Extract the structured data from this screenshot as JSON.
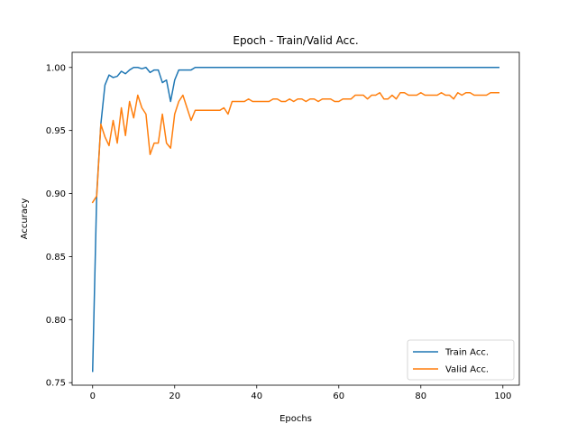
{
  "chart_data": {
    "type": "line",
    "title": "Epoch - Train/Valid Acc.",
    "xlabel": "Epochs",
    "ylabel": "Accuracy",
    "xlim": [
      -5.0,
      104.0
    ],
    "ylim": [
      0.748,
      1.012
    ],
    "xticks": [
      0,
      20,
      40,
      60,
      80,
      100
    ],
    "yticks": [
      0.75,
      0.8,
      0.85,
      0.9,
      0.95,
      1.0
    ],
    "ytick_labels": [
      "0.75",
      "0.80",
      "0.85",
      "0.90",
      "0.95",
      "1.00"
    ],
    "grid": false,
    "legend_position": "lower-right",
    "series": [
      {
        "name": "Train Acc.",
        "color": "#1f77b4",
        "x": [
          0,
          1,
          2,
          3,
          4,
          5,
          6,
          7,
          8,
          9,
          10,
          11,
          12,
          13,
          14,
          15,
          16,
          17,
          18,
          19,
          20,
          21,
          22,
          23,
          24,
          25,
          26,
          27,
          28,
          29,
          30,
          31,
          32,
          33,
          34,
          35,
          36,
          37,
          38,
          39,
          40,
          41,
          42,
          43,
          44,
          45,
          46,
          47,
          48,
          49,
          50,
          51,
          52,
          53,
          54,
          55,
          56,
          57,
          58,
          59,
          60,
          61,
          62,
          63,
          64,
          65,
          66,
          67,
          68,
          69,
          70,
          71,
          72,
          73,
          74,
          75,
          76,
          77,
          78,
          79,
          80,
          81,
          82,
          83,
          84,
          85,
          86,
          87,
          88,
          89,
          90,
          91,
          92,
          93,
          94,
          95,
          96,
          97,
          98,
          99
        ],
        "values": [
          0.759,
          0.9,
          0.955,
          0.986,
          0.994,
          0.992,
          0.993,
          0.997,
          0.995,
          0.998,
          1.0,
          1.0,
          0.999,
          1.0,
          0.996,
          0.998,
          0.998,
          0.988,
          0.99,
          0.973,
          0.99,
          0.998,
          0.998,
          0.998,
          0.998,
          1.0,
          1.0,
          1.0,
          1.0,
          1.0,
          1.0,
          1.0,
          1.0,
          1.0,
          1.0,
          1.0,
          1.0,
          1.0,
          1.0,
          1.0,
          1.0,
          1.0,
          1.0,
          1.0,
          1.0,
          1.0,
          1.0,
          1.0,
          1.0,
          1.0,
          1.0,
          1.0,
          1.0,
          1.0,
          1.0,
          1.0,
          1.0,
          1.0,
          1.0,
          1.0,
          1.0,
          1.0,
          1.0,
          1.0,
          1.0,
          1.0,
          1.0,
          1.0,
          1.0,
          1.0,
          1.0,
          1.0,
          1.0,
          1.0,
          1.0,
          1.0,
          1.0,
          1.0,
          1.0,
          1.0,
          1.0,
          1.0,
          1.0,
          1.0,
          1.0,
          1.0,
          1.0,
          1.0,
          1.0,
          1.0,
          1.0,
          1.0,
          1.0,
          1.0,
          1.0,
          1.0,
          1.0,
          1.0,
          1.0,
          1.0
        ]
      },
      {
        "name": "Valid Acc.",
        "color": "#ff7f0e",
        "x": [
          0,
          1,
          2,
          3,
          4,
          5,
          6,
          7,
          8,
          9,
          10,
          11,
          12,
          13,
          14,
          15,
          16,
          17,
          18,
          19,
          20,
          21,
          22,
          23,
          24,
          25,
          26,
          27,
          28,
          29,
          30,
          31,
          32,
          33,
          34,
          35,
          36,
          37,
          38,
          39,
          40,
          41,
          42,
          43,
          44,
          45,
          46,
          47,
          48,
          49,
          50,
          51,
          52,
          53,
          54,
          55,
          56,
          57,
          58,
          59,
          60,
          61,
          62,
          63,
          64,
          65,
          66,
          67,
          68,
          69,
          70,
          71,
          72,
          73,
          74,
          75,
          76,
          77,
          78,
          79,
          80,
          81,
          82,
          83,
          84,
          85,
          86,
          87,
          88,
          89,
          90,
          91,
          92,
          93,
          94,
          95,
          96,
          97,
          98,
          99
        ],
        "values": [
          0.893,
          0.898,
          0.955,
          0.945,
          0.938,
          0.958,
          0.94,
          0.968,
          0.946,
          0.973,
          0.96,
          0.978,
          0.968,
          0.963,
          0.931,
          0.94,
          0.94,
          0.963,
          0.94,
          0.936,
          0.963,
          0.973,
          0.978,
          0.968,
          0.958,
          0.966,
          0.966,
          0.966,
          0.966,
          0.966,
          0.966,
          0.966,
          0.968,
          0.963,
          0.973,
          0.973,
          0.973,
          0.973,
          0.975,
          0.973,
          0.973,
          0.973,
          0.973,
          0.973,
          0.975,
          0.975,
          0.973,
          0.973,
          0.975,
          0.973,
          0.975,
          0.975,
          0.973,
          0.975,
          0.975,
          0.973,
          0.975,
          0.975,
          0.975,
          0.973,
          0.973,
          0.975,
          0.975,
          0.975,
          0.978,
          0.978,
          0.978,
          0.975,
          0.978,
          0.978,
          0.98,
          0.975,
          0.975,
          0.978,
          0.975,
          0.98,
          0.98,
          0.978,
          0.978,
          0.978,
          0.98,
          0.978,
          0.978,
          0.978,
          0.978,
          0.98,
          0.978,
          0.978,
          0.975,
          0.98,
          0.978,
          0.98,
          0.98,
          0.978,
          0.978,
          0.978,
          0.978,
          0.98,
          0.98,
          0.98
        ]
      }
    ]
  }
}
